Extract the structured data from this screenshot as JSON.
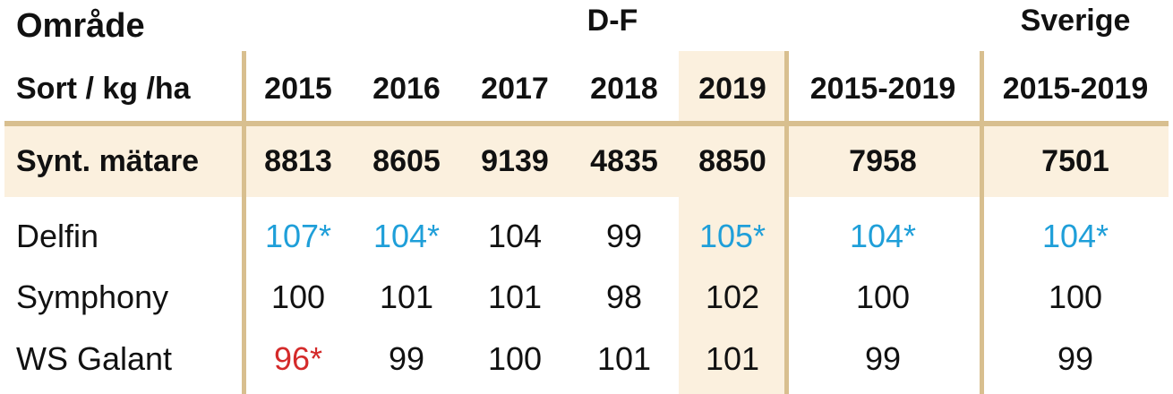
{
  "area_label": "Område",
  "region_label": "D-F",
  "country_label": "Sverige",
  "sort_label": "Sort / kg /ha",
  "years": [
    "2015",
    "2016",
    "2017",
    "2018",
    "2019"
  ],
  "period_region": "2015-2019",
  "period_country": "2015-2019",
  "highlight_color": "#fbf0de",
  "line_color": "#d8bf8f",
  "significant_high_color": "#1f9fd9",
  "significant_low_color": "#d42a2a",
  "rows": [
    {
      "name": "Synt. mätare",
      "values": [
        "8813",
        "8605",
        "9139",
        "4835",
        "8850"
      ],
      "avg_region": "7958",
      "avg_country": "7501"
    },
    {
      "name": "Delfin",
      "values": [
        "107*",
        "104*",
        "104",
        "99",
        "105*"
      ],
      "avg_region": "104*",
      "avg_country": "104*"
    },
    {
      "name": "Symphony",
      "values": [
        "100",
        "101",
        "101",
        "98",
        "102"
      ],
      "avg_region": "100",
      "avg_country": "100"
    },
    {
      "name": "WS Galant",
      "values": [
        "96*",
        "99",
        "100",
        "101",
        "101"
      ],
      "avg_region": "99",
      "avg_country": "99"
    }
  ]
}
